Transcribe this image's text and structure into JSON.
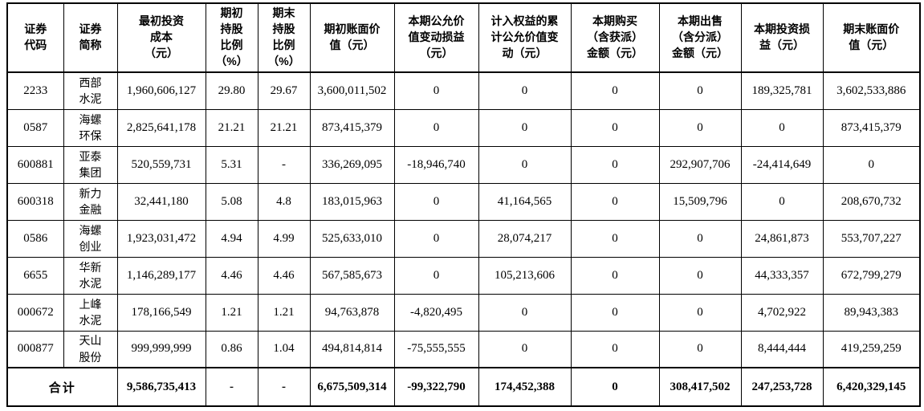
{
  "table": {
    "columns": [
      "证券\n代码",
      "证券\n简称",
      "最初投资\n成本\n（元）",
      "期初\n持股\n比例\n（%）",
      "期末\n持股\n比例\n（%）",
      "期初账面价\n值（元）",
      "本期公允价\n值变动损益\n（元）",
      "计入权益的累\n计公允价值变\n动（元）",
      "本期购买\n（含获派）\n金额（元）",
      "本期出售\n（含分派）\n金额（元）",
      "本期投资损\n益（元）",
      "期末账面价\n值（元）"
    ],
    "rows": [
      [
        "2233",
        "西部水泥",
        "1,960,606,127",
        "29.80",
        "29.67",
        "3,600,011,502",
        "0",
        "0",
        "0",
        "0",
        "189,325,781",
        "3,602,533,886"
      ],
      [
        "0587",
        "海螺环保",
        "2,825,641,178",
        "21.21",
        "21.21",
        "873,415,379",
        "0",
        "0",
        "0",
        "0",
        "0",
        "873,415,379"
      ],
      [
        "600881",
        "亚泰集团",
        "520,559,731",
        "5.31",
        "-",
        "336,269,095",
        "-18,946,740",
        "0",
        "0",
        "292,907,706",
        "-24,414,649",
        "0"
      ],
      [
        "600318",
        "新力金融",
        "32,441,180",
        "5.08",
        "4.8",
        "183,015,963",
        "0",
        "41,164,565",
        "0",
        "15,509,796",
        "0",
        "208,670,732"
      ],
      [
        "0586",
        "海螺创业",
        "1,923,031,472",
        "4.94",
        "4.99",
        "525,633,010",
        "0",
        "28,074,217",
        "0",
        "0",
        "24,861,873",
        "553,707,227"
      ],
      [
        "6655",
        "华新水泥",
        "1,146,289,177",
        "4.46",
        "4.46",
        "567,585,673",
        "0",
        "105,213,606",
        "0",
        "0",
        "44,333,357",
        "672,799,279"
      ],
      [
        "000672",
        "上峰水泥",
        "178,166,549",
        "1.21",
        "1.21",
        "94,763,878",
        "-4,820,495",
        "0",
        "0",
        "0",
        "4,702,922",
        "89,943,383"
      ],
      [
        "000877",
        "天山股份",
        "999,999,999",
        "0.86",
        "1.04",
        "494,814,814",
        "-75,555,555",
        "0",
        "0",
        "0",
        "8,444,444",
        "419,259,259"
      ]
    ],
    "total": {
      "label": "合计",
      "values": [
        "9,586,735,413",
        "-",
        "-",
        "6,675,509,314",
        "-99,322,790",
        "174,452,388",
        "0",
        "308,417,502",
        "247,253,728",
        "6,420,329,145"
      ]
    }
  },
  "colors": {
    "text": "#000000",
    "border": "#000000",
    "background": "#ffffff"
  }
}
